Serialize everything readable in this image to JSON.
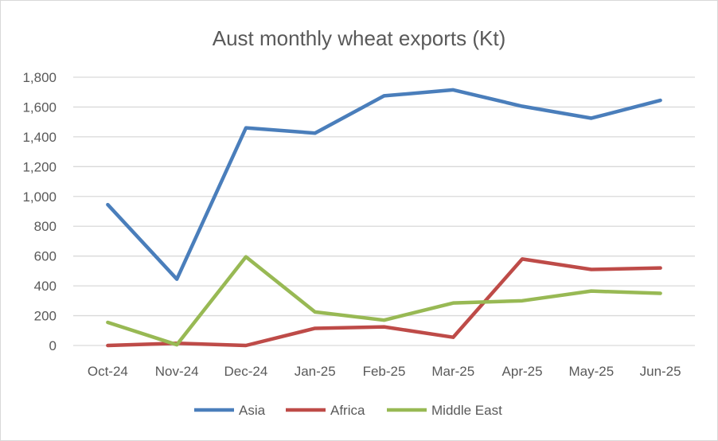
{
  "chart_data": {
    "type": "line",
    "title": "Aust monthly wheat exports (Kt)",
    "categories": [
      "Oct-24",
      "Nov-24",
      "Dec-24",
      "Jan-25",
      "Feb-25",
      "Mar-25",
      "Apr-25",
      "May-25",
      "Jun-25"
    ],
    "series": [
      {
        "name": "Asia",
        "color": "#4a7ebb",
        "values": [
          945,
          445,
          1460,
          1425,
          1675,
          1715,
          1605,
          1525,
          1645
        ]
      },
      {
        "name": "Africa",
        "color": "#be4b48",
        "values": [
          0,
          15,
          0,
          115,
          125,
          55,
          580,
          510,
          520
        ]
      },
      {
        "name": "Middle East",
        "color": "#98b954",
        "values": [
          155,
          5,
          595,
          225,
          170,
          285,
          300,
          365,
          350
        ]
      }
    ],
    "yticks": [
      "0",
      "200",
      "400",
      "600",
      "800",
      "1,000",
      "1,200",
      "1,400",
      "1,600",
      "1,800"
    ],
    "ylim": [
      0,
      1800
    ],
    "grid": true,
    "legend": "bottom"
  }
}
